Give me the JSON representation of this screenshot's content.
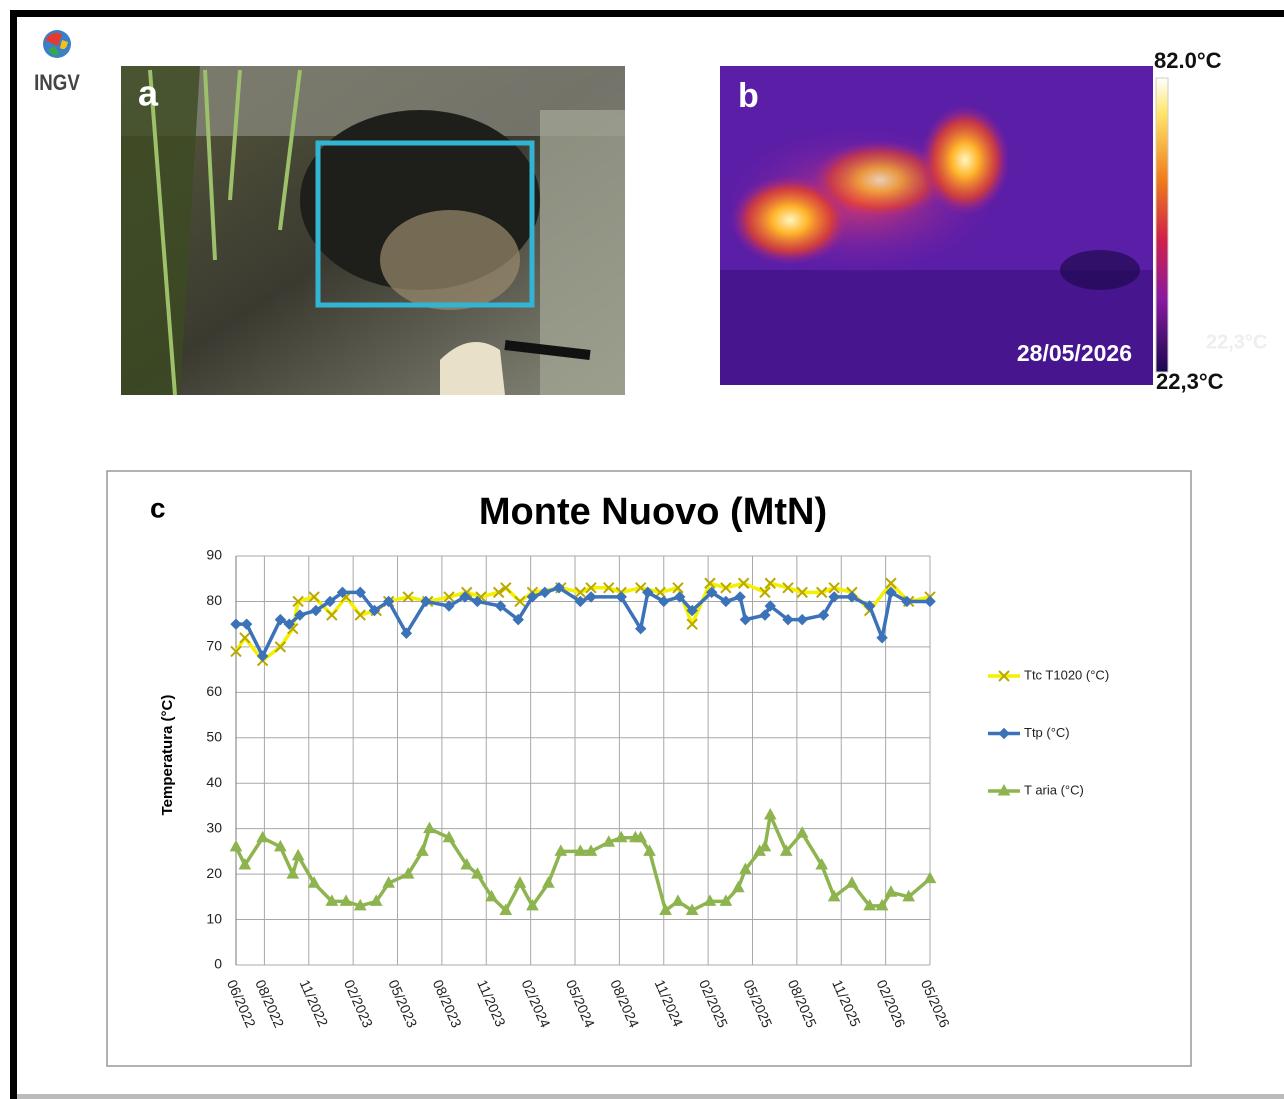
{
  "logo": "INGV",
  "photo_a": {
    "label": "a"
  },
  "thermal_b": {
    "label": "b",
    "max_label": "82.0°C",
    "min_label": "22,3°C",
    "date": "28/05/2026",
    "faint_label": "22,3°C"
  },
  "chart_data": {
    "type": "line",
    "panel_label": "c",
    "title": "Monte Nuovo (MtN)",
    "y_label": "Temperatura (°C)",
    "xlim": [
      2022.42,
      2026.33
    ],
    "xticks": [
      {
        "value": 2022.42,
        "label": "06/2022"
      },
      {
        "value": 2022.58,
        "label": "08/2022"
      },
      {
        "value": 2022.83,
        "label": "11/2022"
      },
      {
        "value": 2023.08,
        "label": "02/2023"
      },
      {
        "value": 2023.33,
        "label": "05/2023"
      },
      {
        "value": 2023.58,
        "label": "08/2023"
      },
      {
        "value": 2023.83,
        "label": "11/2023"
      },
      {
        "value": 2024.08,
        "label": "02/2024"
      },
      {
        "value": 2024.33,
        "label": "05/2024"
      },
      {
        "value": 2024.58,
        "label": "08/2024"
      },
      {
        "value": 2024.83,
        "label": "11/2024"
      },
      {
        "value": 2025.08,
        "label": "02/2025"
      },
      {
        "value": 2025.33,
        "label": "05/2025"
      },
      {
        "value": 2025.58,
        "label": "08/2025"
      },
      {
        "value": 2025.83,
        "label": "11/2025"
      },
      {
        "value": 2026.08,
        "label": "02/2026"
      },
      {
        "value": 2026.33,
        "label": "05/2026"
      }
    ],
    "ylim": [
      0,
      90
    ],
    "yticks": [
      0,
      10,
      20,
      30,
      40,
      50,
      60,
      70,
      80,
      90
    ],
    "grid": true,
    "legend": "right",
    "series": [
      {
        "name": "Ttc T1020 (°C)",
        "color": "#f5f000",
        "marker": "x",
        "x": [
          2022.42,
          2022.47,
          2022.57,
          2022.67,
          2022.74,
          2022.77,
          2022.86,
          2022.96,
          2023.04,
          2023.12,
          2023.21,
          2023.28,
          2023.39,
          2023.5,
          2023.62,
          2023.72,
          2023.8,
          2023.9,
          2023.94,
          2024.02,
          2024.09,
          2024.25,
          2024.36,
          2024.42,
          2024.52,
          2024.59,
          2024.7,
          2024.81,
          2024.91,
          2024.99,
          2025.09,
          2025.18,
          2025.28,
          2025.4,
          2025.43,
          2025.53,
          2025.61,
          2025.72,
          2025.79,
          2025.89,
          2025.99,
          2026.11,
          2026.21,
          2026.33
        ],
        "values": [
          69,
          72,
          67,
          70,
          74,
          80,
          81,
          77,
          81,
          77,
          78,
          80,
          81,
          80,
          81,
          82,
          81,
          82,
          83,
          80,
          82,
          83,
          82,
          83,
          83,
          82,
          83,
          82,
          83,
          75,
          84,
          83,
          84,
          82,
          84,
          83,
          82,
          82,
          83,
          82,
          78,
          84,
          80,
          81
        ]
      },
      {
        "name": "Ttp (°C)",
        "color": "#3c72b8",
        "marker": "diamond",
        "x": [
          2022.42,
          2022.48,
          2022.57,
          2022.67,
          2022.72,
          2022.78,
          2022.87,
          2022.95,
          2023.02,
          2023.12,
          2023.2,
          2023.28,
          2023.38,
          2023.49,
          2023.62,
          2023.71,
          2023.78,
          2023.91,
          2024.01,
          2024.09,
          2024.16,
          2024.24,
          2024.36,
          2024.42,
          2024.59,
          2024.7,
          2024.74,
          2024.83,
          2024.92,
          2024.99,
          2025.1,
          2025.18,
          2025.26,
          2025.29,
          2025.4,
          2025.43,
          2025.53,
          2025.61,
          2025.73,
          2025.79,
          2025.89,
          2025.99,
          2026.06,
          2026.11,
          2026.2,
          2026.33
        ],
        "values": [
          75,
          75,
          68,
          76,
          75,
          77,
          78,
          80,
          82,
          82,
          78,
          80,
          73,
          80,
          79,
          81,
          80,
          79,
          76,
          81,
          82,
          83,
          80,
          81,
          81,
          74,
          82,
          80,
          81,
          78,
          82,
          80,
          81,
          76,
          77,
          79,
          76,
          76,
          77,
          81,
          81,
          79,
          72,
          82,
          80,
          80
        ]
      },
      {
        "name": "T aria (°C)",
        "color": "#8db44e",
        "marker": "triangle",
        "x": [
          2022.42,
          2022.47,
          2022.57,
          2022.67,
          2022.74,
          2022.77,
          2022.86,
          2022.96,
          2023.04,
          2023.12,
          2023.21,
          2023.28,
          2023.39,
          2023.47,
          2023.51,
          2023.62,
          2023.72,
          2023.78,
          2023.86,
          2023.94,
          2024.02,
          2024.09,
          2024.18,
          2024.25,
          2024.36,
          2024.42,
          2024.52,
          2024.59,
          2024.67,
          2024.7,
          2024.75,
          2024.84,
          2024.91,
          2024.99,
          2025.09,
          2025.18,
          2025.25,
          2025.29,
          2025.37,
          2025.4,
          2025.43,
          2025.52,
          2025.61,
          2025.72,
          2025.79,
          2025.89,
          2025.99,
          2026.06,
          2026.11,
          2026.21,
          2026.33
        ],
        "values": [
          26,
          22,
          28,
          26,
          20,
          24,
          18,
          14,
          14,
          13,
          14,
          18,
          20,
          25,
          30,
          28,
          22,
          20,
          15,
          12,
          18,
          13,
          18,
          25,
          25,
          25,
          27,
          28,
          28,
          28,
          25,
          12,
          14,
          12,
          14,
          14,
          17,
          21,
          25,
          26,
          33,
          25,
          29,
          22,
          15,
          18,
          13,
          13,
          16,
          15,
          19
        ]
      }
    ]
  }
}
